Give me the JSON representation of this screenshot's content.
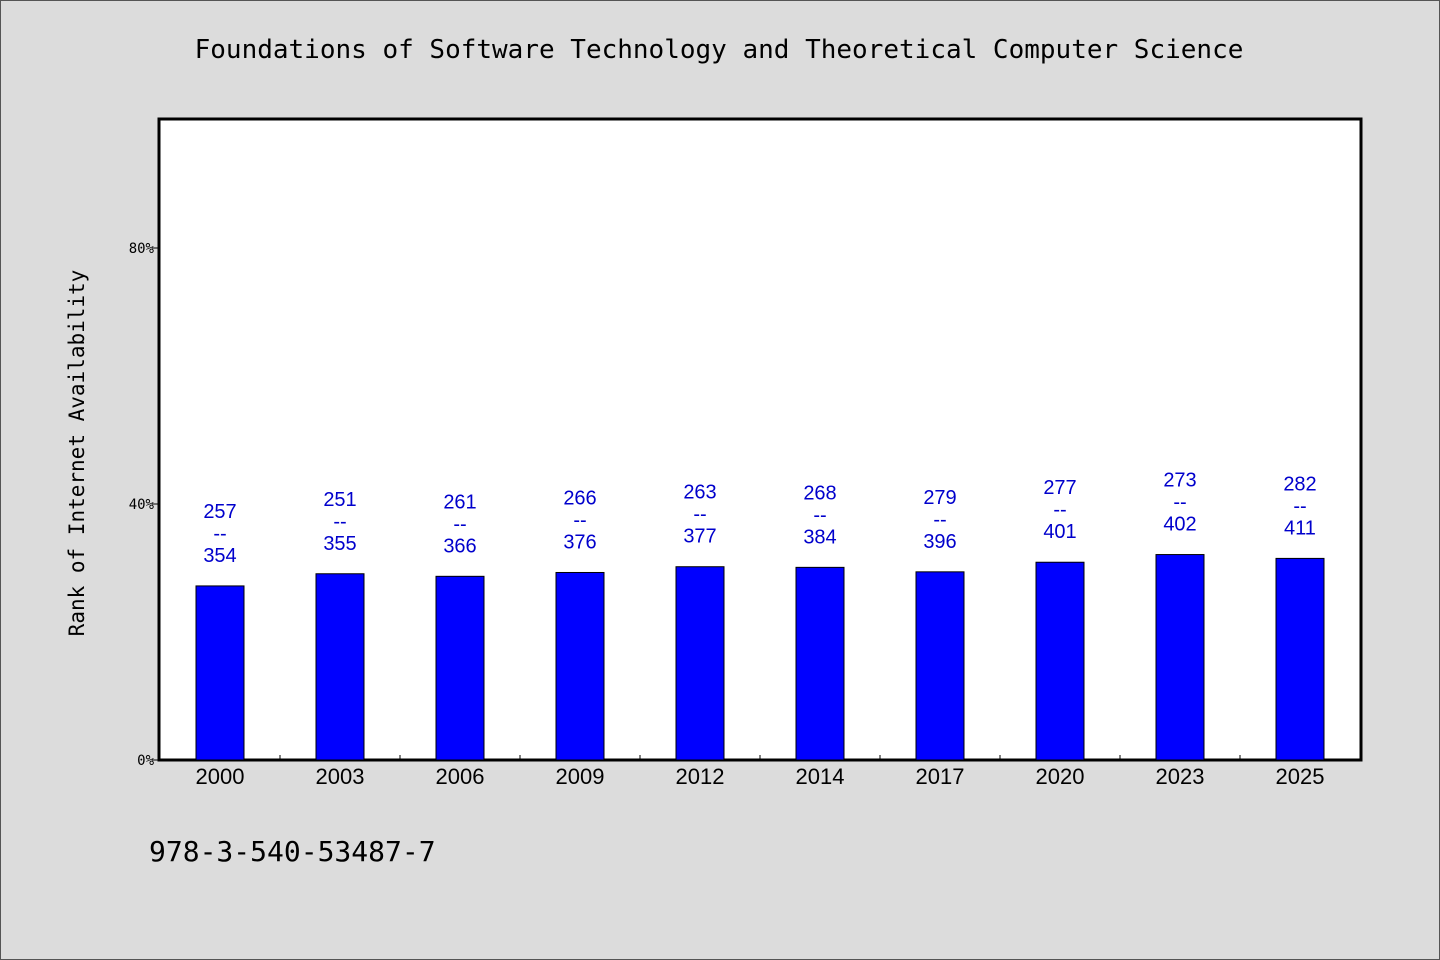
{
  "chart_data": {
    "type": "bar",
    "title": "Foundations of Software Technology and Theoretical Computer Science",
    "ylabel": "Rank of Internet Availability",
    "xlabel": "",
    "footer": "978-3-540-53487-7",
    "y_ticks": [
      "0%",
      "40%",
      "80%"
    ],
    "ylim": [
      0,
      100
    ],
    "grid": false,
    "bar_color": "#0000ff",
    "label_color": "#0000cc",
    "categories": [
      "2000",
      "2003",
      "2006",
      "2009",
      "2012",
      "2014",
      "2017",
      "2020",
      "2023",
      "2025"
    ],
    "values": [
      27.2,
      29.1,
      28.7,
      29.3,
      30.2,
      30.1,
      29.4,
      30.9,
      32.1,
      31.5
    ],
    "labels_top": [
      "257",
      "251",
      "261",
      "266",
      "263",
      "268",
      "279",
      "277",
      "273",
      "282"
    ],
    "labels_bottom": [
      "354",
      "355",
      "366",
      "376",
      "377",
      "384",
      "396",
      "401",
      "402",
      "411"
    ],
    "label_separator": "--"
  }
}
